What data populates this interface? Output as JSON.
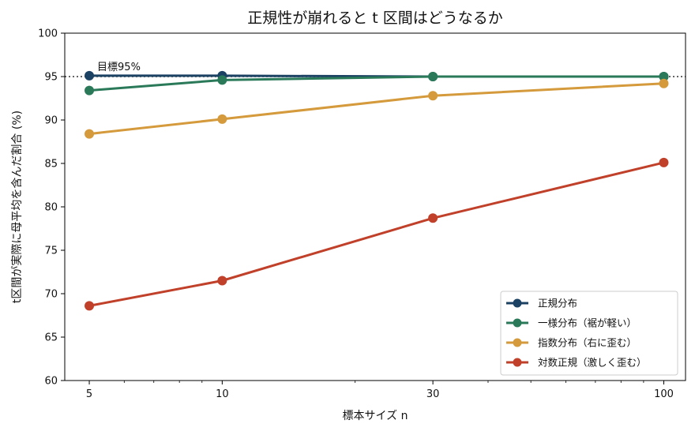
{
  "chart_data": {
    "type": "line",
    "title": "正規性が崩れると t 区間はどうなるか",
    "xlabel": "標本サイズ n",
    "ylabel": "t区間が実際に母平均を含んだ割合 (%)",
    "xscale": "log",
    "x": [
      5,
      10,
      30,
      100
    ],
    "x_tick_labels": [
      "5",
      "10",
      "30",
      "100"
    ],
    "xlim": [
      4.4,
      112
    ],
    "ylim": [
      60,
      100
    ],
    "y_ticks": [
      60,
      65,
      70,
      75,
      80,
      85,
      90,
      95,
      100
    ],
    "y_tick_labels": [
      "60",
      "65",
      "70",
      "75",
      "80",
      "85",
      "90",
      "95",
      "100"
    ],
    "grid": false,
    "legend_position": "lower-right",
    "reference_line": {
      "y": 95,
      "style": "dotted",
      "label": "目標95%"
    },
    "series": [
      {
        "name": "正規分布",
        "color": "#1c4263",
        "values": [
          95.1,
          95.1,
          95.0,
          95.0
        ]
      },
      {
        "name": "一様分布（裾が軽い）",
        "color": "#2a7a5a",
        "values": [
          93.4,
          94.6,
          95.0,
          95.0
        ]
      },
      {
        "name": "指数分布（右に歪む）",
        "color": "#d49a3c",
        "values": [
          88.4,
          90.1,
          92.8,
          94.2
        ]
      },
      {
        "name": "対数正規（激しく歪む）",
        "color": "#c0402a",
        "values": [
          68.6,
          71.5,
          78.7,
          85.1
        ]
      }
    ]
  }
}
